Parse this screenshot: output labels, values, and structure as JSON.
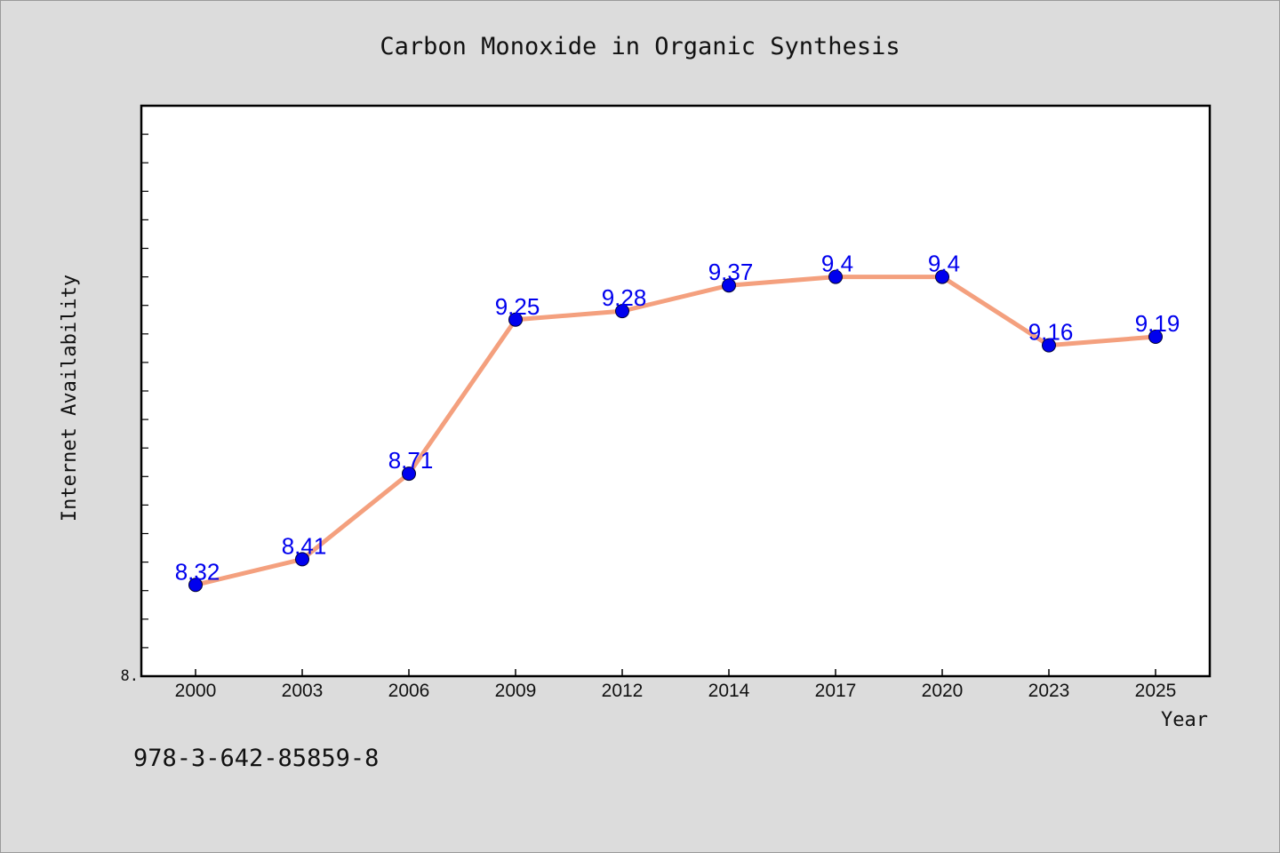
{
  "chart_data": {
    "type": "line",
    "title": "Carbon Monoxide in Organic Synthesis",
    "xlabel": "Year",
    "ylabel": "Internet Availability",
    "categories": [
      "2000",
      "2003",
      "2006",
      "2009",
      "2012",
      "2014",
      "2017",
      "2020",
      "2023",
      "2025"
    ],
    "values": [
      8.32,
      8.41,
      8.71,
      9.25,
      9.28,
      9.37,
      9.4,
      9.4,
      9.16,
      9.19
    ],
    "data_labels": [
      "8.32",
      "8.41",
      "8.71",
      "9.25",
      "9.28",
      "9.37",
      "9.4",
      "9.4",
      "9.16",
      "9.19"
    ],
    "ylim": [
      8.0,
      10.0
    ],
    "y_tick_label": "8.",
    "grid": false,
    "legend": "none",
    "line_color": "#f4a07e",
    "marker_color": "#0000ee",
    "label_color": "#0000ee"
  },
  "footer": {
    "isbn": "978-3-642-85859-8"
  }
}
